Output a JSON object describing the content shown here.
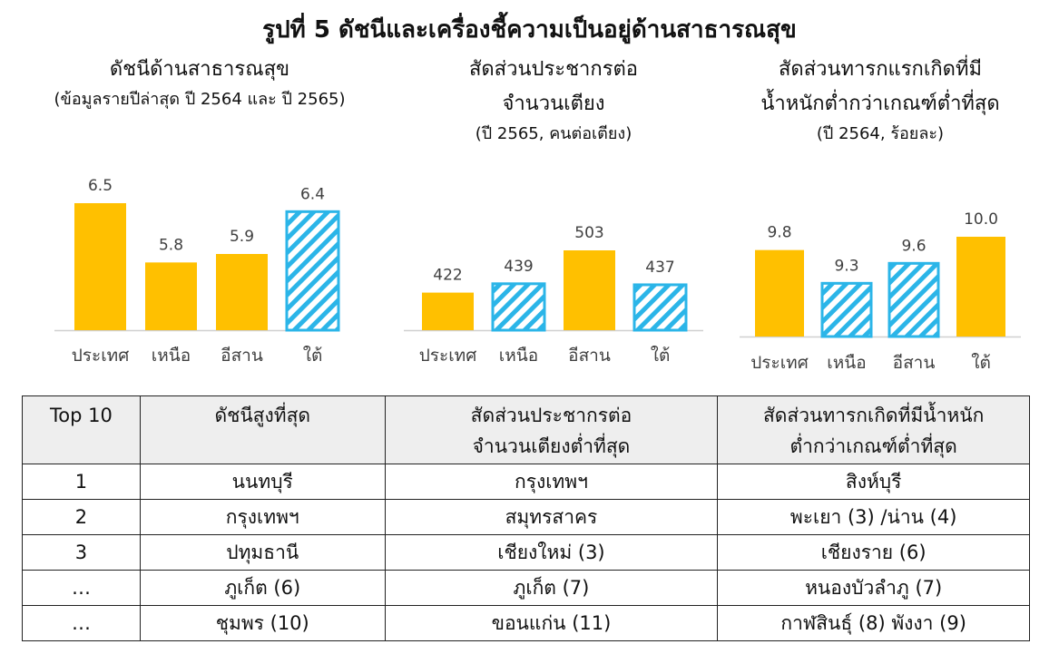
{
  "title": "รูปที่ 5 ดัชนีและเครื่องชี้ความเป็นอยู่ด้านสาธารณสุข",
  "colors": {
    "solid": "#FFC000",
    "hatch": "#2BB5E8",
    "text": "#404040"
  },
  "chart_data": [
    {
      "type": "bar",
      "title": "ดัชนีด้านสาธารณสุข",
      "subtitle": "(ข้อมูลรายปีล่าสุด ปี 2564 และ ปี 2565)",
      "categories": [
        "ประเทศ",
        "เหนือ",
        "อีสาน",
        "ใต้"
      ],
      "values": [
        6.5,
        5.8,
        5.9,
        6.4
      ],
      "value_labels": [
        "6.5",
        "5.8",
        "5.9",
        "6.4"
      ],
      "patterns": [
        "solid",
        "solid",
        "solid",
        "hatch"
      ],
      "grid": false
    },
    {
      "type": "bar",
      "title_line1": "สัดส่วนประชากรต่อ",
      "title_line2": "จำนวนเตียง",
      "subtitle": "(ปี 2565, คนต่อเตียง)",
      "categories": [
        "ประเทศ",
        "เหนือ",
        "อีสาน",
        "ใต้"
      ],
      "values": [
        422,
        439,
        503,
        437
      ],
      "value_labels": [
        "422",
        "439",
        "503",
        "437"
      ],
      "patterns": [
        "solid",
        "hatch",
        "solid",
        "hatch"
      ],
      "grid": false
    },
    {
      "type": "bar",
      "title_line1": "สัดส่วนทารกแรกเกิดที่มี",
      "title_line2": "น้ำหนักต่ำกว่าเกณฑ์ต่ำที่สุด",
      "subtitle": "(ปี 2564, ร้อยละ)",
      "categories": [
        "ประเทศ",
        "เหนือ",
        "อีสาน",
        "ใต้"
      ],
      "values": [
        9.8,
        9.3,
        9.6,
        10.0
      ],
      "value_labels": [
        "9.8",
        "9.3",
        "9.6",
        "10.0"
      ],
      "patterns": [
        "solid",
        "hatch",
        "hatch",
        "solid"
      ],
      "grid": false
    },
    {
      "type": "table",
      "headers": [
        [
          "Top 10"
        ],
        [
          "ดัชนีสูงที่สุด"
        ],
        [
          "สัดส่วนประชากรต่อ",
          "จำนวนเตียงต่ำที่สุด"
        ],
        [
          "สัดส่วนทารกเกิดที่มีน้ำหนัก",
          "ต่ำกว่าเกณฑ์ต่ำที่สุด"
        ]
      ],
      "rows": [
        [
          "1",
          "นนทบุรี",
          "กรุงเทพฯ",
          "สิงห์บุรี"
        ],
        [
          "2",
          "กรุงเทพฯ",
          "สมุทรสาคร",
          "พะเยา (3) /น่าน (4)"
        ],
        [
          "3",
          "ปทุมธานี",
          "เชียงใหม่ (3)",
          "เชียงราย (6)"
        ],
        [
          "…",
          "ภูเก็ต (6)",
          "ภูเก็ต (7)",
          "หนองบัวลำภู (7)"
        ],
        [
          "…",
          "ชุมพร (10)",
          "ขอนแก่น (11)",
          "กาฬสินธุ์ (8)  พังงา (9)"
        ]
      ]
    }
  ]
}
